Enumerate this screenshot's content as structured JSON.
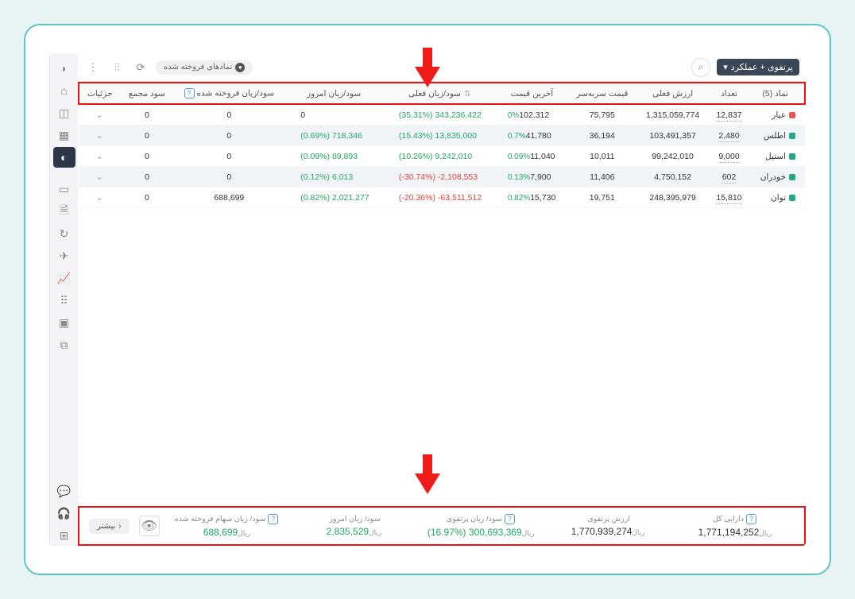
{
  "topbar": {
    "portfolio_label": "پرتفوی + عملکرد",
    "sold_chip": "نمادهای فروخته شده"
  },
  "columns": {
    "symbol": "نماد (5)",
    "count": "تعداد",
    "current_value": "ارزش فعلی",
    "breakeven": "قیمت سربه‌سر",
    "last_price": "آخرین قیمت",
    "current_pl": "سود/زیان فعلی",
    "today_pl": "سود/زیان امروز",
    "sold_pl": "سود/زیان فروخته شده",
    "assembly_profit": "سود مجمع",
    "details": "جزئیات"
  },
  "rows": [
    {
      "symbol": "عیار",
      "dot": "#e55",
      "count": "12,837",
      "value": "1,315,059,774",
      "breakeven": "75,795",
      "price": "102,312",
      "price_pct": "0%",
      "pl_val": "343,236,422",
      "pl_pct": "(35.31%)",
      "pl_dir": "pos",
      "today_val": "0",
      "today_pct": "",
      "today_dir": "",
      "sold": "0",
      "assembly": "0",
      "hl": false
    },
    {
      "symbol": "اطلس",
      "dot": "#2a8",
      "count": "2,480",
      "value": "103,491,357",
      "breakeven": "36,194",
      "price": "41,780",
      "price_pct": "0.7%",
      "pl_val": "13,835,000",
      "pl_pct": "(15.43%)",
      "pl_dir": "pos",
      "today_val": "718,346",
      "today_pct": "(0.69%)",
      "today_dir": "pos",
      "sold": "0",
      "assembly": "0",
      "hl": true
    },
    {
      "symbol": "استیل",
      "dot": "#2a8",
      "count": "9,000",
      "value": "99,242,010",
      "breakeven": "10,011",
      "price": "11,040",
      "price_pct": "0.09%",
      "pl_val": "9,242,010",
      "pl_pct": "(10.26%)",
      "pl_dir": "pos",
      "today_val": "89,893",
      "today_pct": "(0.09%)",
      "today_dir": "pos",
      "sold": "0",
      "assembly": "0",
      "hl": false
    },
    {
      "symbol": "خودران",
      "dot": "#2a8",
      "count": "602",
      "value": "4,750,152",
      "breakeven": "11,406",
      "price": "7,900",
      "price_pct": "0.13%",
      "pl_val": "-2,108,553",
      "pl_pct": "(-30.74%)",
      "pl_dir": "neg",
      "today_val": "6,013",
      "today_pct": "(0.12%)",
      "today_dir": "pos",
      "sold": "0",
      "assembly": "0",
      "hl": true
    },
    {
      "symbol": "توان",
      "dot": "#2a8",
      "count": "15,810",
      "value": "248,395,979",
      "breakeven": "19,751",
      "price": "15,730",
      "price_pct": "0.82%",
      "pl_val": "-63,511,512",
      "pl_pct": "(-20.36%)",
      "pl_dir": "neg",
      "today_val": "2,021,277",
      "today_pct": "(0.82%)",
      "today_dir": "pos",
      "sold": "688,699",
      "assembly": "0",
      "hl": false
    }
  ],
  "footer": {
    "total_assets_label": "دارایی کل",
    "total_assets": "1,771,194,252",
    "portfolio_value_label": "ارزش پرتفوی",
    "portfolio_value": "1,770,939,274",
    "portfolio_pl_label": "سود/ زیان پرتفوی",
    "portfolio_pl": "300,693,369",
    "portfolio_pl_pct": "(%16.97)",
    "today_pl_label": "سود/ زیان امروز",
    "today_pl": "2,835,529",
    "sold_pl_label": "سود/ زیان سهام فروخته شده",
    "sold_pl": "688,699",
    "unit": "ریال",
    "more": "بیشتر"
  },
  "colors": {
    "pos": "#1fa863",
    "neg": "#e23d3d",
    "highlight_border": "#e11"
  }
}
